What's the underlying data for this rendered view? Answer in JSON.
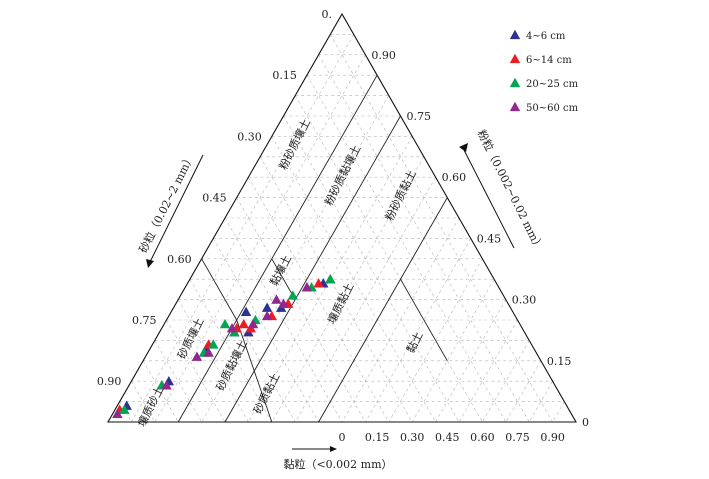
{
  "chart_data": {
    "type": "scatter",
    "subtype": "ternary",
    "axes": {
      "bottom": {
        "label": "黏粒（<0.002 mm）",
        "ticks": [
          "0",
          "0.15",
          "0.30",
          "0.45",
          "0.60",
          "0.75",
          "0.90"
        ]
      },
      "left": {
        "label": "砂粒（0.02~2 mm）",
        "ticks": [
          "0.",
          "0.15",
          "0.30",
          "0.45",
          "0.60",
          "0.75",
          "0.90"
        ]
      },
      "right": {
        "label": "粉粒（0.002~0.02 mm）",
        "ticks": [
          "0.90",
          "0.75",
          "0.60",
          "0.45",
          "0.30",
          "0.15",
          "0"
        ]
      }
    },
    "regions": [
      "粉砂质壤土",
      "粉砂质黏壤土",
      "粉砂质黏土",
      "黏壤土",
      "壤质黏土",
      "黏土",
      "砂质壤土",
      "砂质黏壤土",
      "砂质黏土",
      "壤质砂土"
    ],
    "legend_position": "top-right",
    "series": [
      {
        "name": "4~6 cm",
        "color": "#2e3192",
        "marker": "triangle",
        "points": [
          {
            "clay": 0.02,
            "sand": 0.94
          },
          {
            "clay": 0.08,
            "sand": 0.82
          },
          {
            "clay": 0.12,
            "sand": 0.7
          },
          {
            "clay": 0.16,
            "sand": 0.62
          },
          {
            "clay": 0.19,
            "sand": 0.59
          },
          {
            "clay": 0.2,
            "sand": 0.52
          },
          {
            "clay": 0.23,
            "sand": 0.49
          },
          {
            "clay": 0.26,
            "sand": 0.41
          },
          {
            "clay": 0.29,
            "sand": 0.37
          },
          {
            "clay": 0.16,
            "sand": 0.57
          }
        ]
      },
      {
        "name": "6~14 cm",
        "color": "#ed1c24",
        "marker": "triangle",
        "points": [
          {
            "clay": 0.01,
            "sand": 0.96
          },
          {
            "clay": 0.07,
            "sand": 0.84
          },
          {
            "clay": 0.12,
            "sand": 0.69
          },
          {
            "clay": 0.16,
            "sand": 0.61
          },
          {
            "clay": 0.19,
            "sand": 0.58
          },
          {
            "clay": 0.22,
            "sand": 0.52
          },
          {
            "clay": 0.24,
            "sand": 0.47
          },
          {
            "clay": 0.28,
            "sand": 0.38
          },
          {
            "clay": 0.3,
            "sand": 0.35
          },
          {
            "clay": 0.17,
            "sand": 0.59
          }
        ]
      },
      {
        "name": "20~25 cm",
        "color": "#00a651",
        "marker": "triangle",
        "points": [
          {
            "clay": 0.02,
            "sand": 0.95
          },
          {
            "clay": 0.07,
            "sand": 0.84
          },
          {
            "clay": 0.12,
            "sand": 0.71
          },
          {
            "clay": 0.13,
            "sand": 0.63
          },
          {
            "clay": 0.16,
            "sand": 0.62
          },
          {
            "clay": 0.19,
            "sand": 0.56
          },
          {
            "clay": 0.24,
            "sand": 0.45
          },
          {
            "clay": 0.27,
            "sand": 0.4
          },
          {
            "clay": 0.3,
            "sand": 0.35
          },
          {
            "clay": 0.13,
            "sand": 0.68
          }
        ]
      },
      {
        "name": "50~60 cm",
        "color": "#92278f",
        "marker": "triangle",
        "points": [
          {
            "clay": 0.01,
            "sand": 0.97
          },
          {
            "clay": 0.08,
            "sand": 0.83
          },
          {
            "clay": 0.13,
            "sand": 0.7
          },
          {
            "clay": 0.15,
            "sand": 0.62
          },
          {
            "clay": 0.19,
            "sand": 0.57
          },
          {
            "clay": 0.21,
            "sand": 0.53
          },
          {
            "clay": 0.23,
            "sand": 0.48
          },
          {
            "clay": 0.26,
            "sand": 0.41
          },
          {
            "clay": 0.21,
            "sand": 0.49
          },
          {
            "clay": 0.11,
            "sand": 0.73
          }
        ]
      }
    ]
  }
}
